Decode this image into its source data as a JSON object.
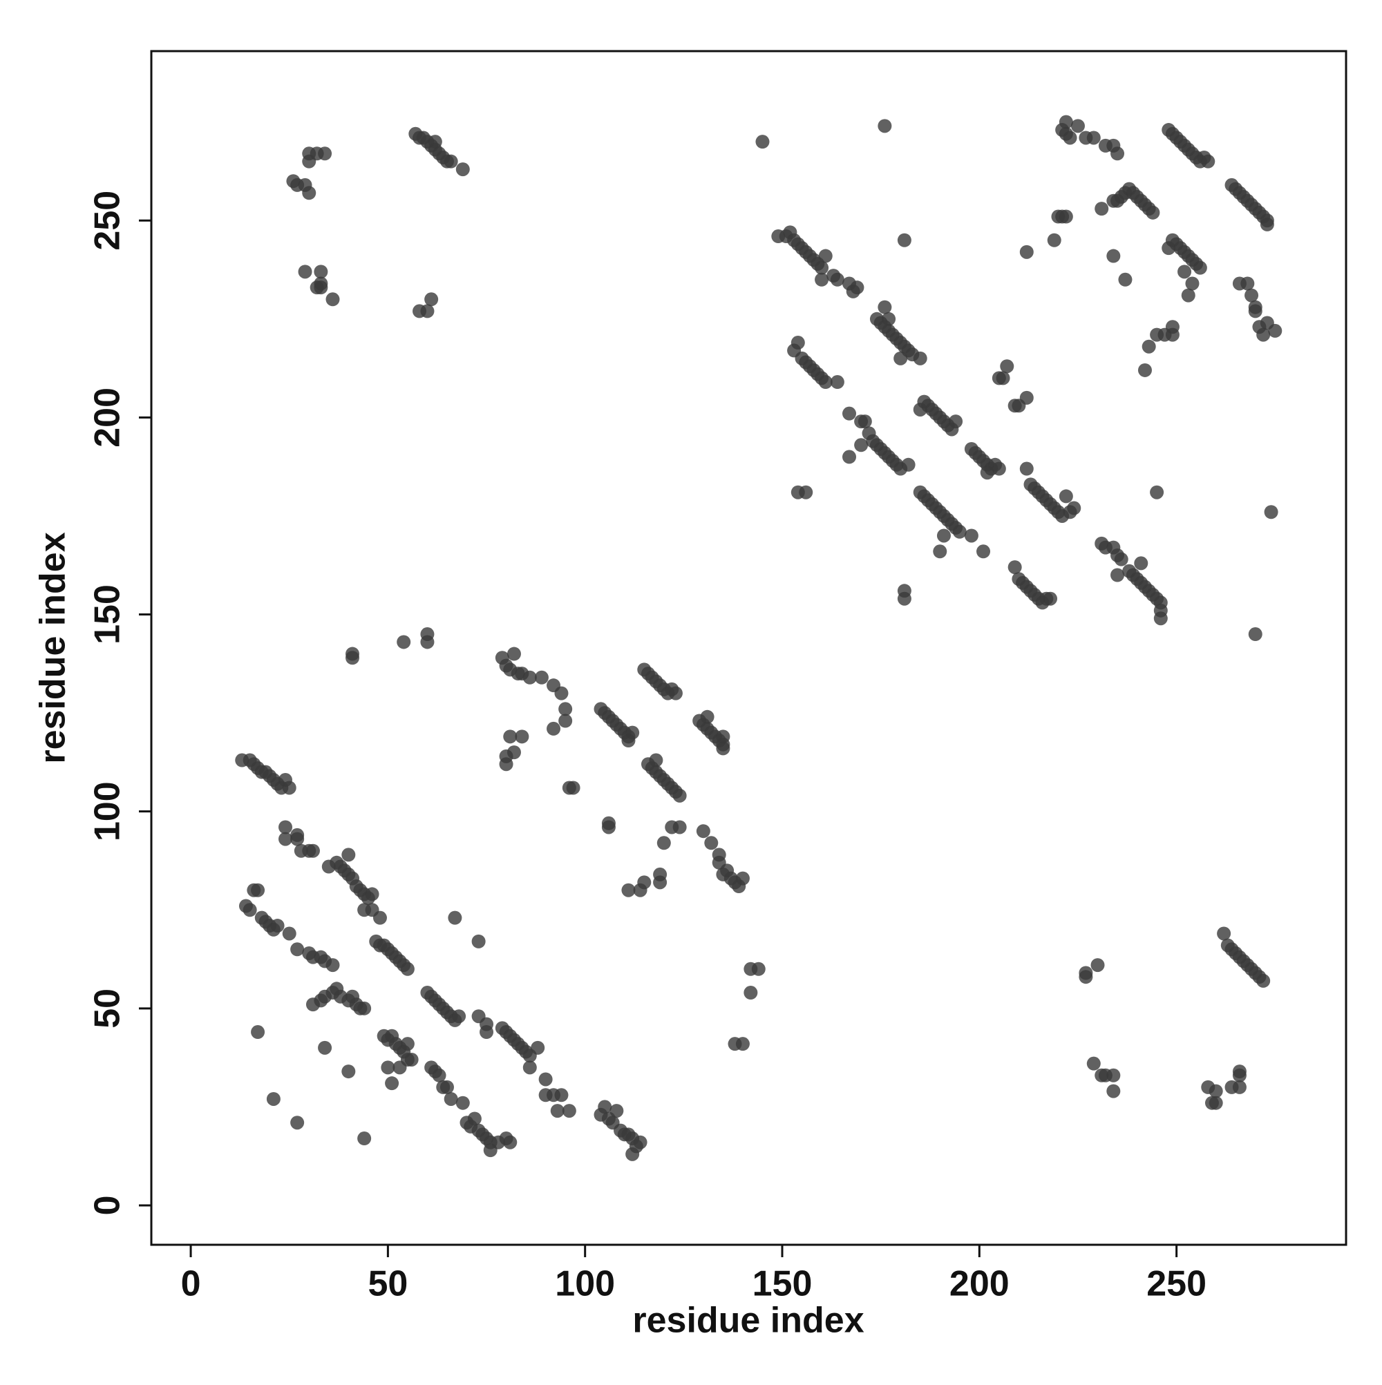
{
  "chart_data": {
    "type": "scatter",
    "xlabel": "residue index",
    "ylabel": "residue index",
    "xlim": [
      -10,
      293
    ],
    "ylim": [
      -10,
      293
    ],
    "xticks": [
      0,
      50,
      100,
      150,
      200,
      250
    ],
    "yticks": [
      0,
      50,
      100,
      150,
      200,
      250
    ],
    "color": "#3a3a3a",
    "x": [
      13,
      15,
      16,
      17,
      18,
      19,
      20,
      21,
      22,
      23,
      24,
      25,
      24,
      24,
      27,
      27,
      28,
      30,
      31,
      35,
      37,
      38,
      39,
      40,
      41,
      42,
      43,
      44,
      45,
      46,
      44,
      46,
      48,
      40,
      14,
      15,
      16,
      17,
      18,
      19,
      20,
      21,
      22,
      25,
      27,
      30,
      31,
      33,
      34,
      36,
      47,
      48,
      49,
      50,
      51,
      52,
      53,
      54,
      55,
      31,
      33,
      34,
      36,
      37,
      38,
      40,
      41,
      42,
      43,
      44,
      49,
      50,
      51,
      52,
      53,
      54,
      55,
      50,
      53,
      55,
      56,
      51,
      60,
      61,
      62,
      63,
      64,
      65,
      66,
      67,
      68,
      61,
      62,
      63,
      64,
      65,
      66,
      69,
      73,
      75,
      75,
      79,
      80,
      81,
      82,
      83,
      84,
      85,
      86,
      88,
      86,
      70,
      71,
      72,
      73,
      74,
      75,
      76,
      76,
      78,
      80,
      81,
      90,
      90,
      92,
      93,
      94,
      96,
      104,
      105,
      106,
      107,
      108,
      109,
      110,
      111,
      112,
      113,
      114,
      112,
      17,
      21,
      27,
      34,
      40,
      44,
      67,
      73,
      41,
      41,
      54,
      60,
      60,
      58,
      60,
      61,
      79,
      80,
      81,
      82,
      83,
      84,
      86,
      89,
      92,
      94,
      95,
      95,
      92,
      80,
      80,
      81,
      82,
      84,
      96,
      97,
      104,
      105,
      106,
      107,
      108,
      109,
      110,
      111,
      112,
      111,
      115,
      116,
      117,
      118,
      119,
      120,
      121,
      122,
      123,
      116,
      117,
      118,
      119,
      120,
      121,
      122,
      123,
      124,
      118,
      129,
      130,
      131,
      132,
      133,
      134,
      135,
      135,
      135,
      131,
      106,
      106,
      120,
      122,
      124,
      130,
      132,
      134,
      134,
      135,
      136,
      137,
      138,
      139,
      140,
      111,
      114,
      115,
      119,
      119,
      142,
      144,
      142,
      138,
      140,
      26,
      27,
      29,
      30,
      30,
      30,
      32,
      34,
      29,
      32,
      33,
      33,
      33,
      36,
      57,
      58,
      59,
      60,
      61,
      62,
      63,
      64,
      62,
      65,
      66,
      69,
      145,
      176,
      181,
      212,
      221,
      222,
      222,
      223,
      225,
      227,
      229,
      232,
      235,
      234,
      149,
      151,
      152,
      153,
      154,
      155,
      156,
      157,
      158,
      159,
      160,
      161,
      160,
      163,
      164,
      167,
      168,
      169,
      174,
      175,
      176,
      177,
      178,
      179,
      180,
      181,
      182,
      183,
      176,
      177,
      180,
      185,
      153,
      154,
      155,
      156,
      157,
      158,
      159,
      160,
      161,
      164,
      167,
      167,
      170,
      171,
      170,
      172,
      173,
      174,
      175,
      176,
      177,
      178,
      179,
      180,
      182,
      186,
      187,
      188,
      189,
      190,
      191,
      192,
      193,
      194,
      185,
      198,
      199,
      200,
      201,
      202,
      203,
      204,
      205,
      202,
      185,
      186,
      187,
      188,
      189,
      190,
      191,
      192,
      193,
      194,
      195,
      191,
      190,
      198,
      201,
      154,
      156,
      181,
      181,
      205,
      206,
      207,
      209,
      210,
      212,
      212,
      213,
      214,
      215,
      216,
      217,
      218,
      219,
      220,
      221,
      223,
      224,
      222,
      209,
      210,
      211,
      212,
      213,
      214,
      215,
      216,
      217,
      218,
      231,
      232,
      234,
      235,
      236,
      235,
      238,
      239,
      240,
      241,
      242,
      243,
      244,
      245,
      246,
      246,
      246,
      241,
      219,
      220,
      221,
      222,
      231,
      234,
      235,
      236,
      237,
      238,
      239,
      240,
      241,
      242,
      243,
      244,
      234,
      237,
      242,
      243,
      245,
      245,
      248,
      249,
      250,
      251,
      252,
      253,
      254,
      255,
      256,
      257,
      258,
      248,
      249,
      250,
      251,
      252,
      253,
      254,
      255,
      256,
      252,
      254,
      253,
      247,
      249,
      249,
      264,
      265,
      266,
      267,
      268,
      269,
      270,
      271,
      272,
      273,
      273,
      266,
      268,
      269,
      270,
      270,
      271,
      272,
      273,
      275,
      274,
      270,
      262,
      263,
      264,
      265,
      266,
      267,
      268,
      269,
      270,
      271,
      272,
      227,
      227,
      230,
      229,
      231,
      232,
      234,
      234,
      258,
      259,
      260,
      260,
      264,
      266,
      266,
      266
    ],
    "y": [
      113,
      113,
      112,
      111,
      110,
      110,
      109,
      108,
      107,
      106,
      108,
      106,
      96,
      93,
      94,
      93,
      90,
      90,
      90,
      86,
      87,
      86,
      85,
      84,
      83,
      81,
      80,
      79,
      78,
      79,
      75,
      75,
      73,
      89,
      76,
      75,
      80,
      80,
      73,
      72,
      71,
      70,
      71,
      69,
      65,
      64,
      63,
      63,
      62,
      61,
      67,
      66,
      66,
      65,
      64,
      63,
      62,
      61,
      60,
      51,
      52,
      53,
      54,
      55,
      53,
      52,
      53,
      51,
      50,
      50,
      43,
      42,
      43,
      41,
      40,
      39,
      41,
      35,
      35,
      37,
      37,
      31,
      54,
      53,
      52,
      51,
      50,
      49,
      48,
      47,
      48,
      35,
      34,
      33,
      30,
      30,
      27,
      26,
      48,
      46,
      44,
      45,
      44,
      43,
      42,
      41,
      40,
      39,
      38,
      40,
      35,
      21,
      20,
      22,
      19,
      18,
      17,
      16,
      14,
      16,
      17,
      16,
      32,
      28,
      28,
      24,
      28,
      24,
      23,
      25,
      22,
      21,
      24,
      19,
      18,
      18,
      17,
      15,
      16,
      13,
      44,
      27,
      21,
      40,
      34,
      17,
      73,
      67,
      140,
      139,
      143,
      145,
      143,
      227,
      227,
      230,
      139,
      137,
      136,
      140,
      135,
      135,
      134,
      134,
      132,
      130,
      126,
      123,
      121,
      112,
      114,
      119,
      115,
      119,
      106,
      106,
      126,
      125,
      124,
      123,
      122,
      121,
      120,
      119,
      120,
      118,
      136,
      135,
      134,
      133,
      132,
      131,
      130,
      131,
      130,
      112,
      111,
      110,
      109,
      108,
      107,
      106,
      105,
      104,
      113,
      123,
      122,
      121,
      120,
      119,
      118,
      117,
      119,
      116,
      124,
      97,
      96,
      92,
      96,
      96,
      95,
      92,
      89,
      87,
      84,
      85,
      83,
      82,
      81,
      83,
      80,
      80,
      82,
      82,
      84,
      60,
      60,
      54,
      41,
      41,
      260,
      259,
      259,
      257,
      265,
      267,
      267,
      267,
      237,
      233,
      237,
      234,
      233,
      230,
      272,
      271,
      271,
      270,
      269,
      268,
      267,
      266,
      270,
      265,
      265,
      263,
      270,
      274,
      245,
      242,
      273,
      275,
      272,
      271,
      274,
      271,
      271,
      269,
      267,
      269,
      246,
      246,
      247,
      245,
      244,
      243,
      242,
      241,
      240,
      239,
      238,
      241,
      235,
      236,
      235,
      234,
      232,
      233,
      225,
      224,
      223,
      222,
      221,
      220,
      219,
      218,
      217,
      216,
      228,
      225,
      215,
      215,
      217,
      219,
      215,
      214,
      213,
      212,
      211,
      210,
      209,
      209,
      201,
      190,
      199,
      199,
      193,
      196,
      194,
      193,
      192,
      191,
      190,
      189,
      188,
      187,
      188,
      204,
      203,
      202,
      201,
      200,
      199,
      198,
      197,
      199,
      202,
      192,
      191,
      190,
      189,
      188,
      187,
      188,
      187,
      186,
      181,
      180,
      179,
      178,
      177,
      176,
      175,
      174,
      173,
      172,
      171,
      170,
      166,
      170,
      166,
      181,
      181,
      156,
      154,
      210,
      210,
      213,
      203,
      203,
      205,
      187,
      183,
      182,
      181,
      180,
      179,
      178,
      177,
      176,
      175,
      176,
      177,
      180,
      162,
      159,
      158,
      157,
      156,
      155,
      154,
      153,
      154,
      154,
      168,
      167,
      167,
      165,
      164,
      160,
      161,
      160,
      159,
      158,
      157,
      156,
      155,
      154,
      153,
      151,
      149,
      163,
      245,
      251,
      251,
      251,
      253,
      255,
      255,
      256,
      257,
      258,
      257,
      256,
      255,
      254,
      253,
      252,
      241,
      235,
      212,
      218,
      221,
      181,
      273,
      272,
      271,
      270,
      269,
      268,
      267,
      266,
      265,
      266,
      265,
      243,
      245,
      244,
      243,
      242,
      241,
      240,
      239,
      238,
      237,
      234,
      231,
      221,
      221,
      223,
      259,
      258,
      257,
      256,
      255,
      254,
      253,
      252,
      251,
      250,
      249,
      234,
      234,
      231,
      228,
      227,
      223,
      221,
      224,
      222,
      176,
      145,
      69,
      66,
      65,
      64,
      63,
      62,
      61,
      60,
      59,
      58,
      57,
      58,
      59,
      61,
      36,
      33,
      33,
      33,
      29,
      30,
      26,
      26,
      29,
      30,
      30,
      33,
      34
    ]
  }
}
